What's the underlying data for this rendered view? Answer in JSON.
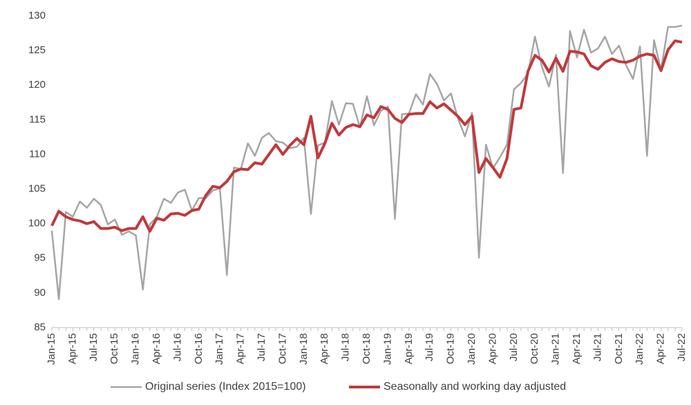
{
  "chart_data": {
    "type": "line",
    "categories": [
      "Jan-15",
      null,
      null,
      "Apr-15",
      null,
      null,
      "Jul-15",
      null,
      null,
      "Oct-15",
      null,
      null,
      "Jan-16",
      null,
      null,
      "Apr-16",
      null,
      null,
      "Jul-16",
      null,
      null,
      "Oct-16",
      null,
      null,
      "Jan-17",
      null,
      null,
      "Apr-17",
      null,
      null,
      "Jul-17",
      null,
      null,
      "Oct-17",
      null,
      null,
      "Jan-18",
      null,
      null,
      "Apr-18",
      null,
      null,
      "Jul-18",
      null,
      null,
      "Oct-18",
      null,
      null,
      "Jan-19",
      null,
      null,
      "Apr-19",
      null,
      null,
      "Jul-19",
      null,
      null,
      "Oct-19",
      null,
      null,
      "Jan-20",
      null,
      null,
      "Apr-20",
      null,
      null,
      "Jul-20",
      null,
      null,
      "Oct-20",
      null,
      null,
      "Jan-21",
      null,
      null,
      "Apr-21",
      null,
      null,
      "Jul-21",
      null,
      null,
      "Oct-21",
      null,
      null,
      "Jan-22",
      null,
      null,
      "Apr-22",
      null,
      null,
      "Jul-22"
    ],
    "series": [
      {
        "name": "Original series (Index 2015=100)",
        "color": "#a5a5a5",
        "values": [
          99,
          89.1,
          101.7,
          101,
          103.2,
          102.3,
          103.6,
          102.7,
          99.9,
          100.6,
          98.4,
          98.9,
          98.3,
          90.5,
          99.9,
          101,
          103.6,
          103,
          104.5,
          104.9,
          101.9,
          103.7,
          103.7,
          104.8,
          105.1,
          92.6,
          108.1,
          107.9,
          111.6,
          109.8,
          112.4,
          113.1,
          111.9,
          111.7,
          110.9,
          111.1,
          112.4,
          101.4,
          111.3,
          111.7,
          117.7,
          114.3,
          117.4,
          117.3,
          113.9,
          118.4,
          114.2,
          116.3,
          116.9,
          100.7,
          115.8,
          115.9,
          118.7,
          117.2,
          121.6,
          120.2,
          117.8,
          118.8,
          115.2,
          112.6,
          116,
          95.1,
          111.4,
          108,
          109.6,
          111.4,
          119.4,
          120.3,
          121.7,
          127,
          122.6,
          119.8,
          124.4,
          107.3,
          127.8,
          124,
          128,
          124.7,
          125.3,
          127,
          124.5,
          125.7,
          122.9,
          120.9,
          125.6,
          109.8,
          126.5,
          122.2,
          128.4,
          128.4,
          128.6
        ]
      },
      {
        "name": "Seasonally and working day adjusted",
        "color": "#c0393b",
        "values": [
          99.7,
          101.8,
          101,
          100.6,
          100.4,
          100,
          100.3,
          99.3,
          99.3,
          99.5,
          99,
          99.3,
          99.3,
          101,
          98.9,
          100.8,
          100.5,
          101.4,
          101.5,
          101.2,
          101.9,
          102.1,
          104.1,
          105.4,
          105.2,
          106.1,
          107.5,
          107.9,
          107.8,
          108.8,
          108.6,
          110,
          111.4,
          110,
          111.3,
          112.3,
          111.4,
          115.5,
          109.5,
          111.6,
          114.5,
          112.8,
          113.9,
          114.3,
          114,
          115.7,
          115.3,
          116.9,
          116.5,
          115.2,
          114.6,
          115.8,
          115.9,
          115.9,
          117.6,
          116.7,
          117.3,
          116.4,
          115.5,
          114.3,
          115.5,
          107.4,
          109.4,
          108.1,
          106.7,
          109.4,
          116.5,
          116.7,
          122,
          124.3,
          123.6,
          121.9,
          123.9,
          122,
          124.9,
          124.8,
          124.5,
          122.8,
          122.3,
          123.3,
          123.8,
          123.4,
          123.3,
          123.6,
          124.2,
          124.5,
          124.3,
          122.1,
          125.1,
          126.4,
          126.2
        ]
      }
    ],
    "ylim": [
      85,
      130
    ],
    "yticks": [
      85,
      90,
      95,
      100,
      105,
      110,
      115,
      120,
      125,
      130
    ],
    "grid": false,
    "legend": "bottom"
  }
}
